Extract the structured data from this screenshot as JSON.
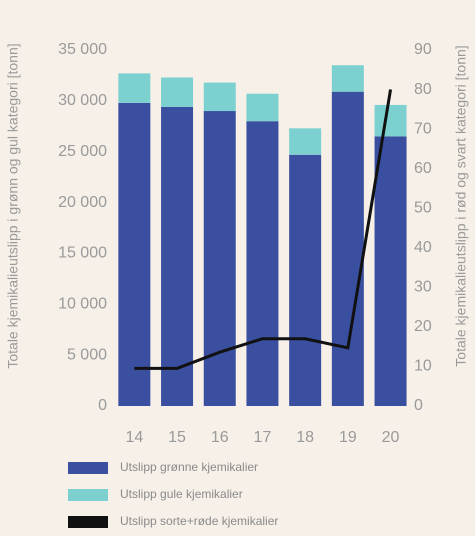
{
  "chart_data": {
    "type": "bar",
    "categories": [
      "14",
      "15",
      "16",
      "17",
      "18",
      "19",
      "20"
    ],
    "ylabel": "Totale kjemikalieutslipp i grønn og gul kategori [tonn]",
    "y2label": "Totale kjemikalieutslipp i rød og svart kategori [tonn]",
    "ylim": [
      0,
      35000
    ],
    "yticks": [
      0,
      {
        "value": 5000,
        "label": "5 000"
      },
      {
        "value": 10000,
        "label": "10 000"
      },
      {
        "value": 15000,
        "label": "15 000"
      },
      {
        "value": 20000,
        "label": "20 000"
      },
      {
        "value": 25000,
        "label": "25 000"
      },
      {
        "value": 30000,
        "label": "30 000"
      },
      {
        "value": 35000,
        "label": "35 000"
      }
    ],
    "y2lim": [
      0,
      90
    ],
    "y2ticks": [
      0,
      10,
      20,
      30,
      40,
      50,
      60,
      70,
      80,
      90
    ],
    "stacked": true,
    "series": [
      {
        "name": "Utslipp grønne kjemikalier",
        "color": "#3a4fa0",
        "values": [
          29800,
          29400,
          29000,
          28000,
          24700,
          30900,
          26500
        ]
      },
      {
        "name": "Utslipp gule kjemikalier",
        "color": "#7dd0d0",
        "values": [
          2900,
          2900,
          2800,
          2700,
          2600,
          2600,
          3100
        ]
      },
      {
        "name": "Utslipp sorte+røde kjemikalier",
        "color": "#111111",
        "type": "line",
        "axis": "y2",
        "values": [
          9.5,
          9.5,
          13.6,
          17,
          17,
          14.7,
          80
        ]
      }
    ]
  }
}
